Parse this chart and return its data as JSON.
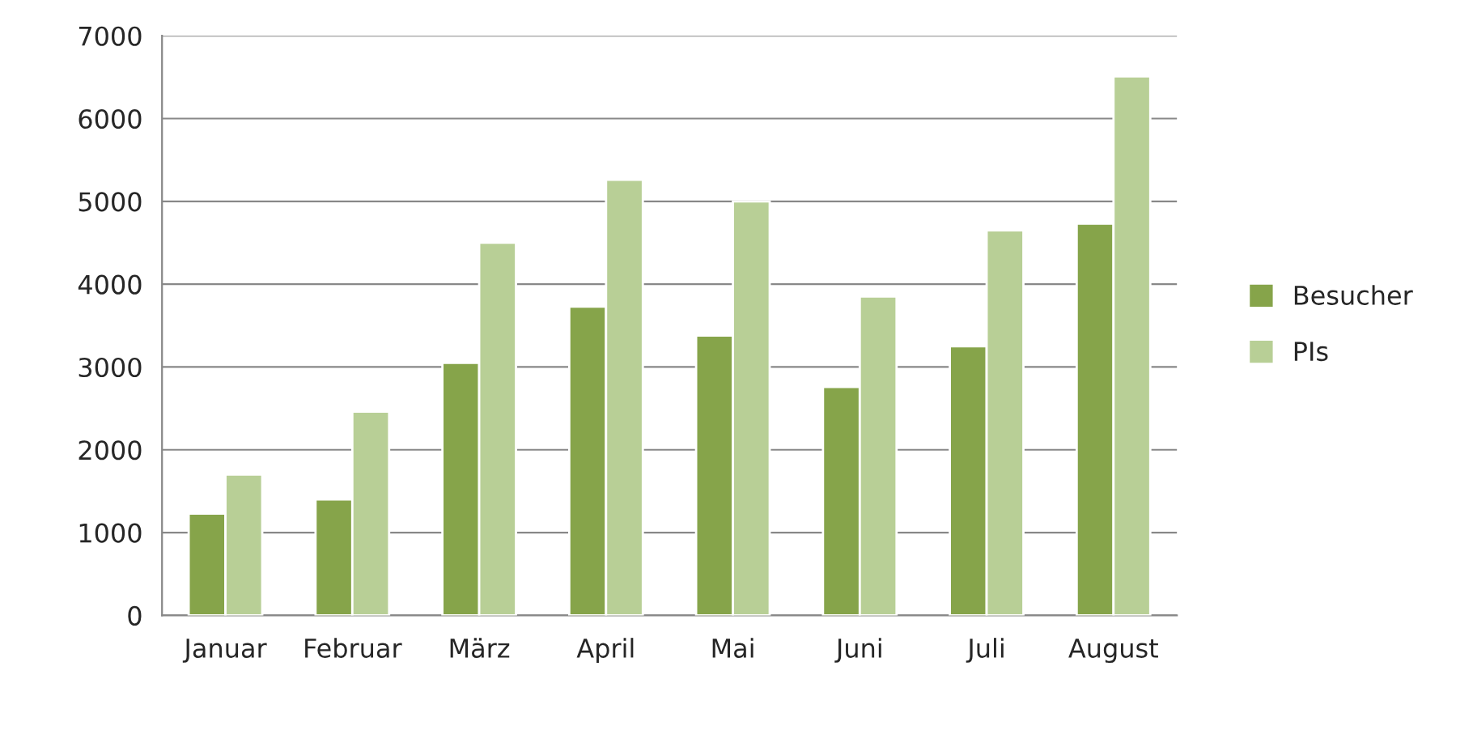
{
  "chart_data": {
    "type": "bar",
    "categories": [
      "Januar",
      "Februar",
      "März",
      "April",
      "Mai",
      "Juni",
      "Juli",
      "August"
    ],
    "series": [
      {
        "name": "Besucher",
        "color": "#86a44a",
        "values": [
          1230,
          1400,
          3050,
          3730,
          3380,
          2760,
          3250,
          4730
        ]
      },
      {
        "name": "PIs",
        "color": "#b8cf96",
        "values": [
          1700,
          2460,
          4500,
          5260,
          5000,
          3850,
          4650,
          6510
        ]
      }
    ],
    "ylim": [
      0,
      7000
    ],
    "yticks": [
      0,
      1000,
      2000,
      3000,
      4000,
      5000,
      6000,
      7000
    ],
    "grid": "y",
    "legend": "right"
  }
}
